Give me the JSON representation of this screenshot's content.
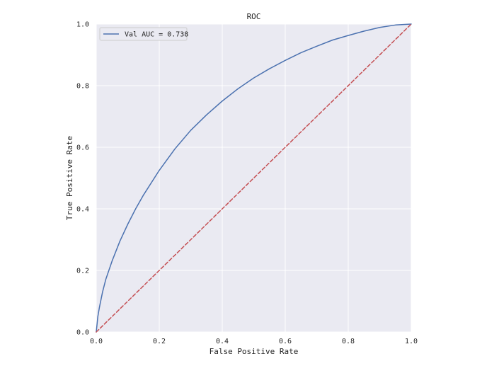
{
  "chart_data": {
    "type": "line",
    "title": "ROC",
    "xlabel": "False Positive Rate",
    "ylabel": "True Positive Rate",
    "xlim": [
      0.0,
      1.0
    ],
    "ylim": [
      0.0,
      1.0
    ],
    "grid": true,
    "legend_position": "top-left",
    "xticks": [
      "0.0",
      "0.2",
      "0.4",
      "0.6",
      "0.8",
      "1.0"
    ],
    "yticks": [
      "0.0",
      "0.2",
      "0.4",
      "0.6",
      "0.8",
      "1.0"
    ],
    "series": [
      {
        "name": "Val AUC = 0.738",
        "color": "#4c72b0",
        "style": "solid",
        "x": [
          0.0,
          0.005,
          0.01,
          0.02,
          0.03,
          0.05,
          0.075,
          0.1,
          0.125,
          0.15,
          0.2,
          0.25,
          0.3,
          0.35,
          0.4,
          0.45,
          0.5,
          0.55,
          0.6,
          0.65,
          0.7,
          0.75,
          0.8,
          0.85,
          0.9,
          0.95,
          1.0
        ],
        "y": [
          0.0,
          0.05,
          0.08,
          0.13,
          0.17,
          0.23,
          0.295,
          0.35,
          0.4,
          0.445,
          0.525,
          0.595,
          0.655,
          0.705,
          0.75,
          0.79,
          0.825,
          0.855,
          0.882,
          0.907,
          0.928,
          0.948,
          0.963,
          0.977,
          0.989,
          0.997,
          1.0
        ]
      },
      {
        "name": "",
        "color": "#c44e52",
        "style": "dashed",
        "x": [
          0.0,
          1.0
        ],
        "y": [
          0.0,
          1.0
        ]
      }
    ]
  }
}
